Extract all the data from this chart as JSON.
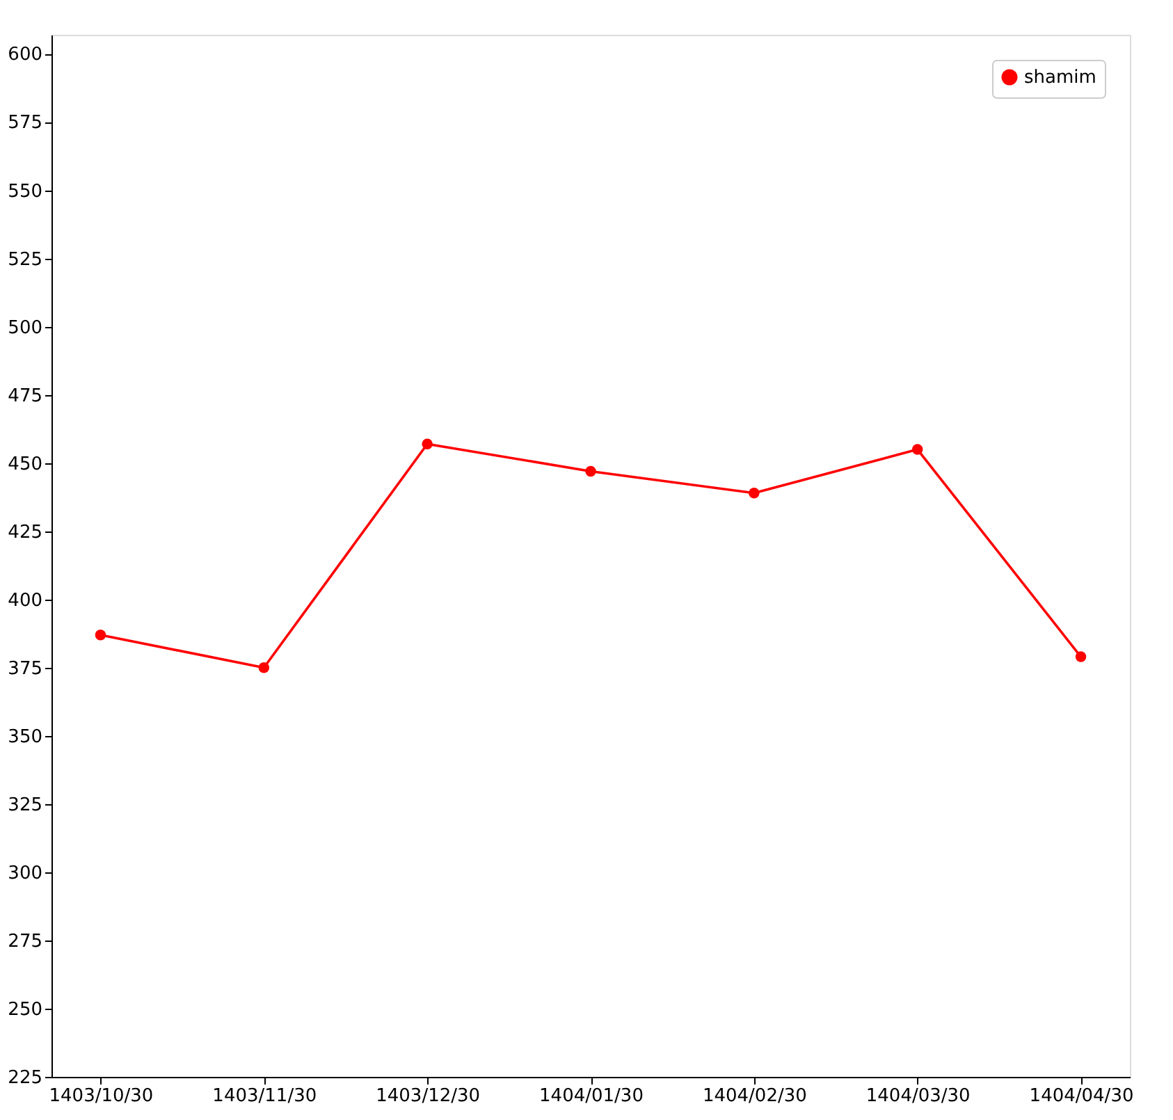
{
  "chart_data": {
    "type": "line",
    "categories": [
      "1403/10/30",
      "1403/11/30",
      "1403/12/30",
      "1404/01/30",
      "1404/02/30",
      "1404/03/30",
      "1404/04/30"
    ],
    "series": [
      {
        "name": "shamim",
        "color": "#ff0000",
        "values": [
          387,
          375,
          457,
          447,
          439,
          455,
          379
        ]
      }
    ],
    "ylim": [
      225,
      607
    ],
    "yticks": [
      225,
      250,
      275,
      300,
      325,
      350,
      375,
      400,
      425,
      450,
      475,
      500,
      525,
      550,
      575,
      600
    ],
    "grid": false,
    "legend": "top right",
    "marker": "circle",
    "line_style": "solid"
  }
}
